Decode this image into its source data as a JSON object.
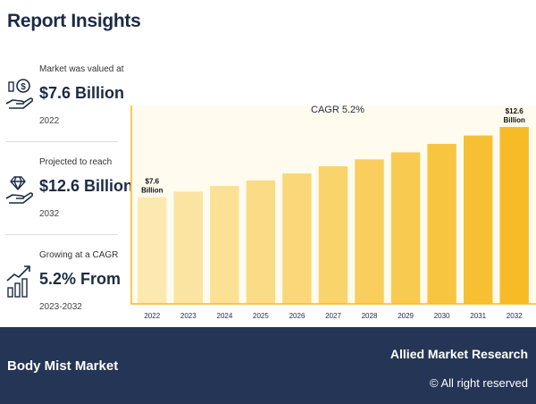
{
  "header": {
    "title": "Report Insights"
  },
  "stats": [
    {
      "label": "Market was valued at",
      "value": "$7.6 Billion",
      "year": "2022",
      "icon": "money-bag-hand-icon"
    },
    {
      "label": "Projected to reach",
      "value": "$12.6 Billion",
      "year": "2032",
      "icon": "diamond-hand-icon"
    },
    {
      "label": "Growing at a CAGR",
      "value": "5.2% From",
      "year": "2023-2032",
      "icon": "growth-chart-icon"
    }
  ],
  "chart_data": {
    "type": "bar",
    "title": "CAGR 5.2%",
    "categories": [
      "2022",
      "2023",
      "2024",
      "2025",
      "2026",
      "2027",
      "2028",
      "2029",
      "2030",
      "2031",
      "2032"
    ],
    "values": [
      7.6,
      8.0,
      8.4,
      8.8,
      9.3,
      9.8,
      10.3,
      10.8,
      11.4,
      12.0,
      12.6
    ],
    "value_labels": {
      "first": "$7.6\nBillion",
      "last": "$12.6\nBillion"
    },
    "ylim": [
      0,
      13.5
    ],
    "grid": false,
    "colors": [
      "#fce9b0",
      "#fbe4a2",
      "#fbe194",
      "#fadc86",
      "#fad879",
      "#f9d36b",
      "#f9ce5d",
      "#f8ca4f",
      "#f8c541",
      "#f7c033",
      "#f6bb25"
    ],
    "axis_color": "#f6bb25",
    "xlabel": "",
    "ylabel": ""
  },
  "footer": {
    "market": "Body Mist Market",
    "brand": "Allied Market Research",
    "rights": "© All right reserved"
  }
}
